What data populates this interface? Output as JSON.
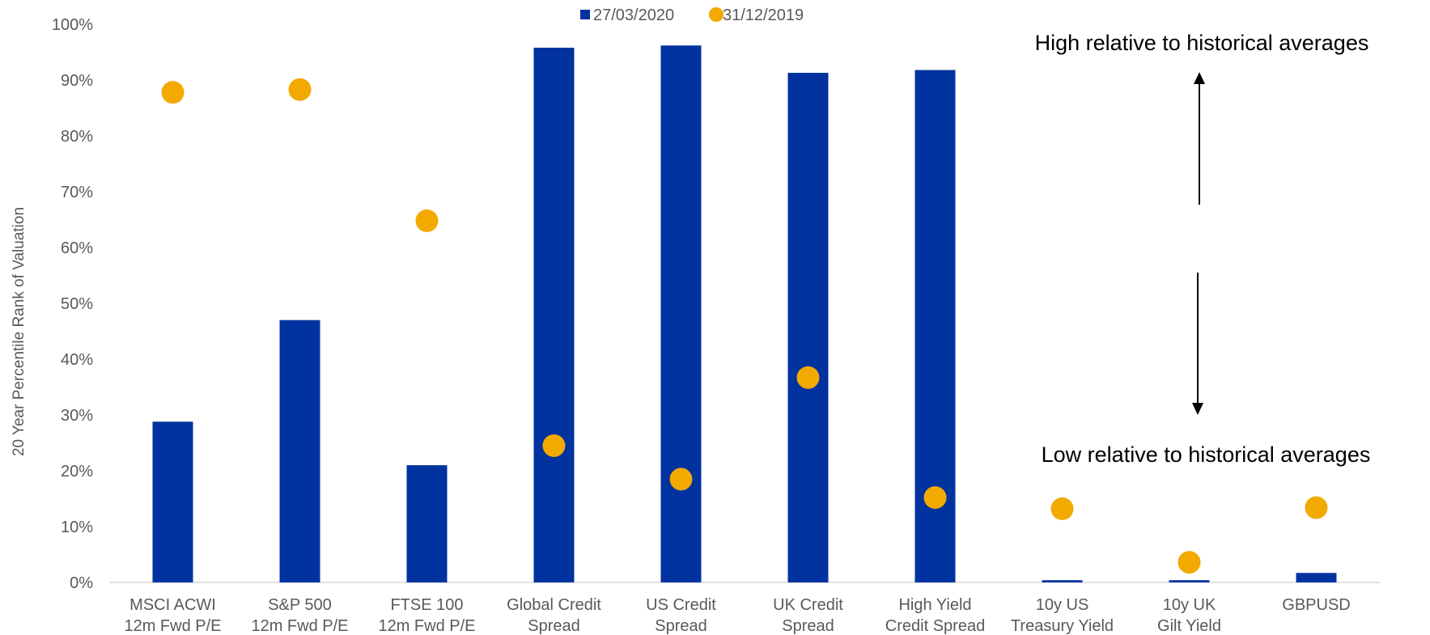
{
  "chart_data": {
    "type": "bar",
    "categories": [
      [
        "MSCI ACWI",
        "12m Fwd P/E"
      ],
      [
        "S&P 500",
        "12m Fwd P/E"
      ],
      [
        "FTSE 100",
        "12m Fwd P/E"
      ],
      [
        "Global Credit",
        "Spread"
      ],
      [
        "US Credit",
        "Spread"
      ],
      [
        "UK Credit",
        "Spread"
      ],
      [
        "High Yield",
        "Credit Spread"
      ],
      [
        "10y US",
        "Treasury Yield"
      ],
      [
        "10y UK",
        "Gilt Yield"
      ],
      [
        "GBPUSD"
      ]
    ],
    "series": [
      {
        "name": "27/03/2020",
        "kind": "bar",
        "color": "#0033a0",
        "values": [
          28.8,
          47.0,
          21.0,
          95.8,
          96.2,
          91.3,
          91.8,
          0.4,
          0.4,
          1.7
        ]
      },
      {
        "name": "31/12/2019",
        "kind": "dot",
        "color": "#f2a900",
        "values": [
          87.8,
          88.3,
          64.8,
          24.5,
          18.5,
          36.7,
          15.2,
          13.2,
          3.6,
          13.4
        ]
      }
    ],
    "ylabel": "20 Year Percentile Rank of Valuation",
    "ylim": [
      0,
      100
    ],
    "yticks": [
      0,
      10,
      20,
      30,
      40,
      50,
      60,
      70,
      80,
      90,
      100
    ],
    "ytick_format": "percent",
    "legend_position": "top",
    "annotations": {
      "high": "High relative to historical averages",
      "low": "Low relative to historical averages"
    }
  }
}
